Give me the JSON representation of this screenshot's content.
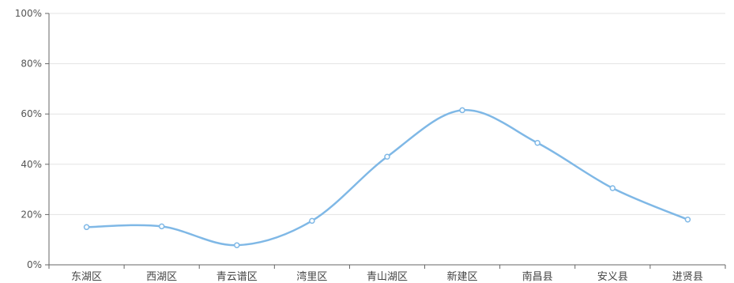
{
  "chart_data": {
    "type": "line",
    "smooth": true,
    "title": "",
    "xlabel": "",
    "ylabel": "",
    "categories": [
      "东湖区",
      "西湖区",
      "青云谱区",
      "湾里区",
      "青山湖区",
      "新建区",
      "南昌县",
      "安义县",
      "进贤县"
    ],
    "series": [
      {
        "values": [
          15,
          15.3,
          7.8,
          17.5,
          43,
          61.5,
          48.5,
          30.5,
          18
        ]
      }
    ],
    "ylim": [
      0,
      100
    ],
    "yticks": [
      0,
      20,
      40,
      60,
      80,
      100
    ],
    "ytick_labels": [
      "0%",
      "20%",
      "40%",
      "60%",
      "80%",
      "100%"
    ],
    "grid": true,
    "legend": "none",
    "colors": {
      "line": "#7fb8e6",
      "marker_fill": "#ffffff",
      "grid": "#e3e3e3",
      "axis": "#666666"
    }
  }
}
